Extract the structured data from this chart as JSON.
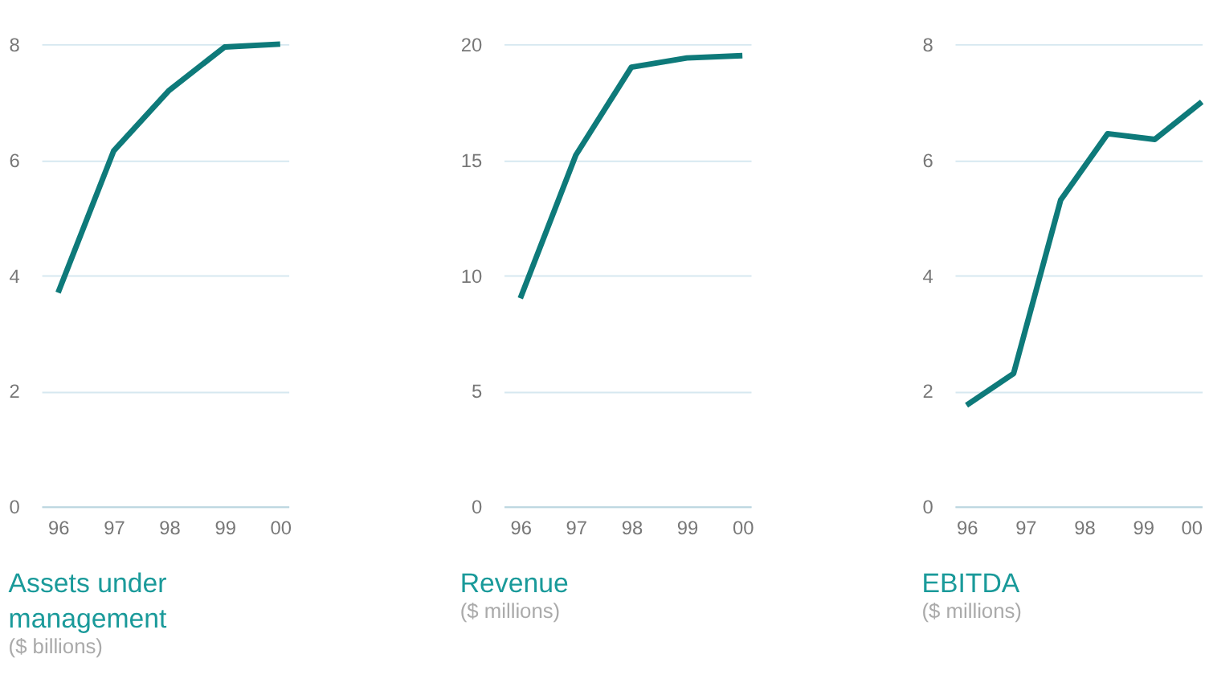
{
  "chart_data": [
    {
      "type": "line",
      "title": "Assets under management",
      "subtitle": "($ billions)",
      "categories": [
        "96",
        "97",
        "98",
        "99",
        "00"
      ],
      "series": [
        {
          "color": "#0e7a7a",
          "values": [
            3.7,
            6.15,
            7.2,
            7.95,
            8.0
          ]
        }
      ],
      "ylim": [
        0,
        8
      ],
      "yticks": [
        0,
        2,
        4,
        6,
        8
      ],
      "grid": "y",
      "marker": "none",
      "line_style": "solid"
    },
    {
      "type": "line",
      "title": "Revenue",
      "subtitle": "($ millions)",
      "categories": [
        "96",
        "97",
        "98",
        "99",
        "00"
      ],
      "series": [
        {
          "color": "#0e7a7a",
          "values": [
            9,
            15.2,
            19,
            19.4,
            19.5
          ]
        }
      ],
      "ylim": [
        0,
        20
      ],
      "yticks": [
        0,
        5,
        10,
        15,
        20
      ],
      "grid": "y",
      "marker": "none",
      "line_style": "solid"
    },
    {
      "type": "line",
      "title": "EBITDA",
      "subtitle": "($ millions)",
      "x": [
        1996,
        1996.8,
        1997.6,
        1998.4,
        1999.2,
        2000
      ],
      "series": [
        {
          "color": "#0e7a7a",
          "values": [
            1.75,
            2.3,
            5.3,
            6.45,
            6.35,
            7.0
          ]
        }
      ],
      "xlim": [
        1995.8,
        2000
      ],
      "xticks": [
        {
          "value": 1996,
          "label": "96"
        },
        {
          "value": 1997,
          "label": "97"
        },
        {
          "value": 1998,
          "label": "98"
        },
        {
          "value": 1999,
          "label": "99"
        },
        {
          "value": 2000,
          "label": "00"
        }
      ],
      "ylim": [
        0,
        8
      ],
      "yticks": [
        0,
        2,
        4,
        6,
        8
      ],
      "grid": "y",
      "marker": "none",
      "line_style": "solid"
    }
  ]
}
